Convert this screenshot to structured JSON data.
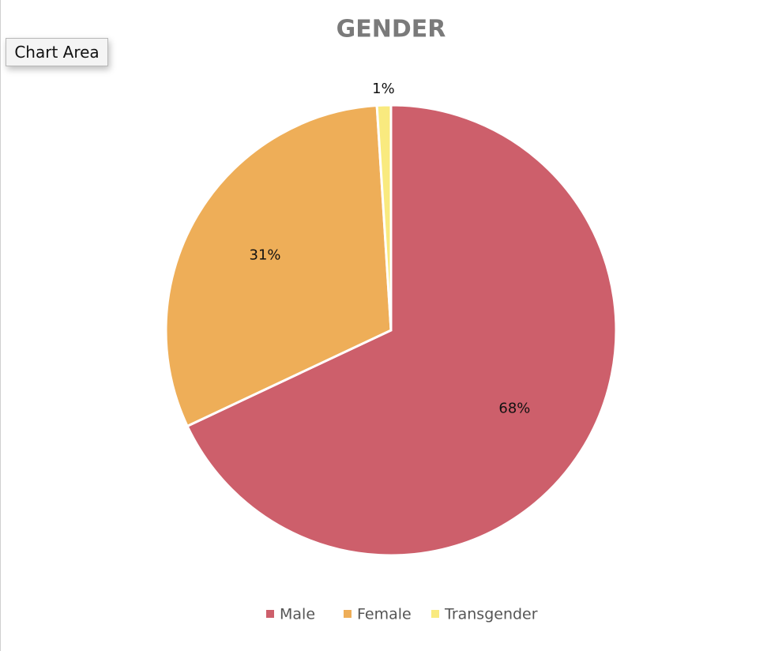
{
  "chart_data": {
    "type": "pie",
    "title": "GENDER",
    "tooltip": "Chart Area",
    "categories": [
      "Male",
      "Female",
      "Transgender"
    ],
    "values": [
      68,
      31,
      1
    ],
    "value_labels": [
      "68%",
      "31%",
      "1%"
    ],
    "colors": [
      "#cd5f6b",
      "#eeae58",
      "#f9ea7f"
    ],
    "legend": "bottom"
  }
}
